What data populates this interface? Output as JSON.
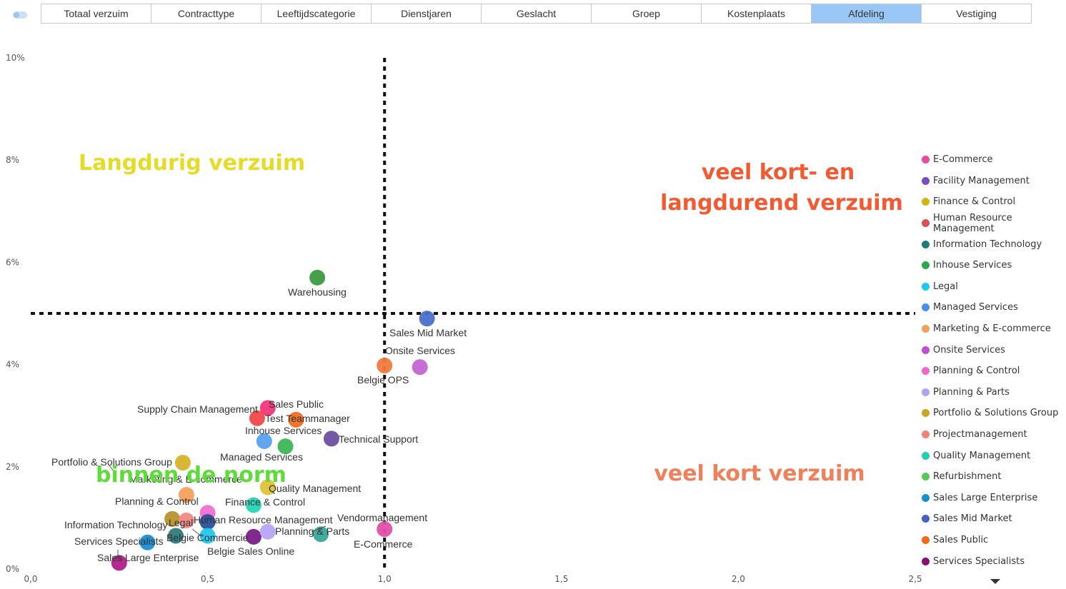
{
  "tabs": [
    {
      "label": "Totaal verzuim",
      "active": false
    },
    {
      "label": "Contracttype",
      "active": false
    },
    {
      "label": "Leeftijdscategorie",
      "active": false
    },
    {
      "label": "Dienstjaren",
      "active": false
    },
    {
      "label": "Geslacht",
      "active": false
    },
    {
      "label": "Groep",
      "active": false
    },
    {
      "label": "Kostenplaats",
      "active": false
    },
    {
      "label": "Afdeling",
      "active": true
    },
    {
      "label": "Vestiging",
      "active": false
    }
  ],
  "chart_data": {
    "type": "scatter",
    "xlim": [
      0,
      2.5
    ],
    "ylim": [
      0,
      10
    ],
    "x_ticks": [
      "0,0",
      "0,5",
      "1,0",
      "1,5",
      "2,0",
      "2,5"
    ],
    "y_ticks": [
      "0%",
      "2%",
      "4%",
      "6%",
      "8%",
      "10%"
    ],
    "thresholds": {
      "x": 1.0,
      "y": 5.0
    },
    "quadrants": [
      {
        "text": "Langdurig verzuim",
        "color": "#e5dc2a",
        "pos": "top-left"
      },
      {
        "text": "veel kort- en",
        "color": "#f45a32",
        "pos": "top-right"
      },
      {
        "text": "langdurend verzuim",
        "color": "#f45a32",
        "pos": "top-right"
      },
      {
        "text": "binnen de norm",
        "color": "#5fdc3c",
        "pos": "bottom-left"
      },
      {
        "text": "veel kort verzuim",
        "color": "#f0805a",
        "pos": "bottom-right"
      }
    ],
    "points": [
      {
        "label": "Warehousing",
        "x": 0.81,
        "y": 5.7,
        "color": "#3d9a3d"
      },
      {
        "label": "Sales Mid Market",
        "x": 1.12,
        "y": 4.9,
        "color": "#4b6fc9"
      },
      {
        "label": "Onsite Services",
        "x": 1.1,
        "y": 3.95,
        "color": "#c564d4"
      },
      {
        "label": "Belgie OPS",
        "x": 1.0,
        "y": 3.98,
        "color": "#f07a3c"
      },
      {
        "label": "Sales Public",
        "x": 0.67,
        "y": 3.15,
        "color": "#f2367a"
      },
      {
        "label": "Supply Chain Management",
        "x": 0.64,
        "y": 2.95,
        "color": "#f04a4a"
      },
      {
        "label": "Test Teammanager",
        "x": 0.75,
        "y": 2.92,
        "color": "#f26b1e"
      },
      {
        "label": "Inhouse Services",
        "x": 0.66,
        "y": 2.5,
        "color": "#5aa1f0"
      },
      {
        "label": "Managed Services",
        "x": 0.72,
        "y": 2.4,
        "color": "#3fb55a"
      },
      {
        "label": "Technical Support",
        "x": 0.85,
        "y": 2.55,
        "color": "#6b4fa0"
      },
      {
        "label": "Portfolio & Solutions Group",
        "x": 0.43,
        "y": 2.08,
        "color": "#d6b32a"
      },
      {
        "label": "Marketing & E-commerce",
        "x": 0.44,
        "y": 1.45,
        "color": "#f5a05a"
      },
      {
        "label": "Quality Management",
        "x": 0.67,
        "y": 1.6,
        "color": "#e0c23a"
      },
      {
        "label": "Finance & Control",
        "x": 0.63,
        "y": 1.25,
        "color": "#27d4b4"
      },
      {
        "label": "Planning & Control",
        "x": 0.5,
        "y": 1.1,
        "color": "#f070d0"
      },
      {
        "label": "Information Technology",
        "x": 0.4,
        "y": 0.98,
        "color": "#b8932a"
      },
      {
        "label": "Legal",
        "x": 0.44,
        "y": 0.95,
        "color": "#f08a84"
      },
      {
        "label": "Human Resource Management",
        "x": 0.5,
        "y": 0.92,
        "color": "#2b4f9a"
      },
      {
        "label": "Belgie Commercie",
        "x": 0.41,
        "y": 0.65,
        "color": "#2d7b7a"
      },
      {
        "label": "Services Specialists",
        "x": 0.33,
        "y": 0.52,
        "color": "#1a8fd6"
      },
      {
        "label": "Belgie Sales Online",
        "x": 0.63,
        "y": 0.63,
        "color": "#7a1e88"
      },
      {
        "label": "Planning & Parts",
        "x": 0.67,
        "y": 0.73,
        "color": "#b8a4f5"
      },
      {
        "label": "Vendormanagement",
        "x": 0.82,
        "y": 0.68,
        "color": "#3aa89a"
      },
      {
        "label": "E-Commerce",
        "x": 1.0,
        "y": 0.78,
        "color": "#e050a8"
      },
      {
        "label": "Sales Large Enterprise",
        "x": 0.25,
        "y": 0.12,
        "color": "#b0208a"
      },
      {
        "label": "",
        "x": 0.5,
        "y": 0.65,
        "color": "#20c8f0"
      }
    ]
  },
  "legend": [
    {
      "label": "E-Commerce",
      "color": "#e84b9b"
    },
    {
      "label": "Facility Management",
      "color": "#7a4ec0"
    },
    {
      "label": "Finance & Control",
      "color": "#d4b314"
    },
    {
      "label": "Human Resource Management",
      "color": "#d9505a"
    },
    {
      "label": "Information Technology",
      "color": "#1f7a7a"
    },
    {
      "label": "Inhouse Services",
      "color": "#2ba84a"
    },
    {
      "label": "Legal",
      "color": "#1ec8f0"
    },
    {
      "label": "Managed Services",
      "color": "#4a8ef0"
    },
    {
      "label": "Marketing & E-commerce",
      "color": "#f5a05a"
    },
    {
      "label": "Onsite Services",
      "color": "#c050d0"
    },
    {
      "label": "Planning & Control",
      "color": "#f068c8"
    },
    {
      "label": "Planning & Parts",
      "color": "#b0a4f0"
    },
    {
      "label": "Portfolio & Solutions Group",
      "color": "#c8a820"
    },
    {
      "label": "Projectmanagement",
      "color": "#f5807a"
    },
    {
      "label": "Quality Management",
      "color": "#20d0b0"
    },
    {
      "label": "Refurbishment",
      "color": "#58c858"
    },
    {
      "label": "Sales Large Enterprise",
      "color": "#1a90d0"
    },
    {
      "label": "Sales Mid Market",
      "color": "#4462c0"
    },
    {
      "label": "Sales Public",
      "color": "#f26a14"
    },
    {
      "label": "Services Specialists",
      "color": "#8a1070"
    }
  ]
}
